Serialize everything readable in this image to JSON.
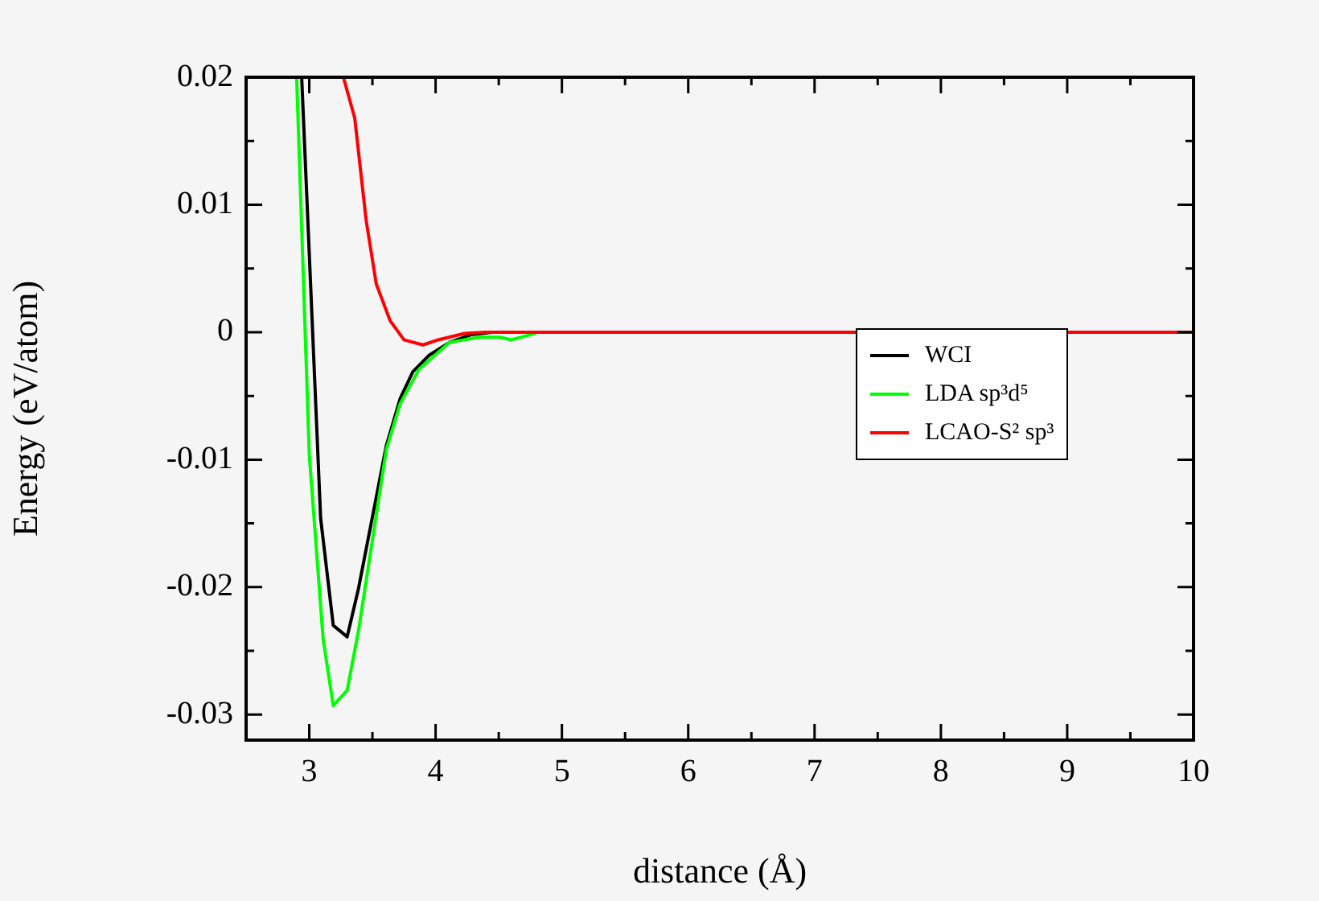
{
  "chart_data": {
    "type": "line",
    "xlabel": "distance (Å)",
    "ylabel": "Energy (eV/atom)",
    "xlim": [
      2.5,
      10
    ],
    "ylim": [
      -0.032,
      0.02
    ],
    "xticks": [
      {
        "value": 2.5,
        "label": null
      },
      3,
      {
        "value": 3.5,
        "label": null
      },
      4,
      {
        "value": 4.5,
        "label": null
      },
      5,
      {
        "value": 5.5,
        "label": null
      },
      6,
      {
        "value": 6.5,
        "label": null
      },
      7,
      {
        "value": 7.5,
        "label": null
      },
      8,
      {
        "value": 8.5,
        "label": null
      },
      9,
      {
        "value": 9.5,
        "label": null
      },
      10
    ],
    "yticks": [
      -0.03,
      {
        "value": -0.025,
        "label": null
      },
      -0.02,
      {
        "value": -0.015,
        "label": null
      },
      -0.01,
      {
        "value": -0.005,
        "label": null
      },
      0,
      {
        "value": 0.005,
        "label": null
      },
      0.01,
      {
        "value": 0.015,
        "label": null
      },
      0.02
    ],
    "grid": false,
    "legend": "right",
    "marker": "none",
    "line_style": "solid",
    "series": [
      {
        "name": "WCI",
        "color": "#000000",
        "x": [
          2.94,
          3.09,
          3.19,
          3.3,
          3.39,
          3.61,
          3.72,
          3.82,
          3.95,
          4.11,
          4.28,
          4.45,
          10
        ],
        "values": [
          0.02,
          -0.0146,
          -0.023,
          -0.0239,
          -0.0201,
          -0.0089,
          -0.0052,
          -0.0031,
          -0.0018,
          -0.0008,
          -0.0002,
          0,
          0
        ]
      },
      {
        "name": "LDA sp³d⁵",
        "color": "#00ff00",
        "x": [
          2.9,
          3.0,
          3.11,
          3.19,
          3.3,
          3.39,
          3.61,
          3.72,
          3.87,
          4.11,
          4.34,
          4.51,
          4.6,
          4.75,
          4.81,
          10
        ],
        "values": [
          0.02,
          -0.0096,
          -0.0241,
          -0.0293,
          -0.0281,
          -0.0234,
          -0.0092,
          -0.0056,
          -0.0029,
          -0.0008,
          -0.0004,
          -0.0004,
          -0.0006,
          -0.0002,
          0,
          0
        ]
      },
      {
        "name": "LCAO-S² sp³",
        "color": "#ff0000",
        "x": [
          3.27,
          3.36,
          3.45,
          3.53,
          3.64,
          3.75,
          3.9,
          4.02,
          4.23,
          4.39,
          10
        ],
        "values": [
          0.02,
          0.0168,
          0.0088,
          0.0038,
          0.0009,
          -0.0006,
          -0.001,
          -0.0006,
          -0.0001,
          0,
          0
        ]
      }
    ]
  }
}
